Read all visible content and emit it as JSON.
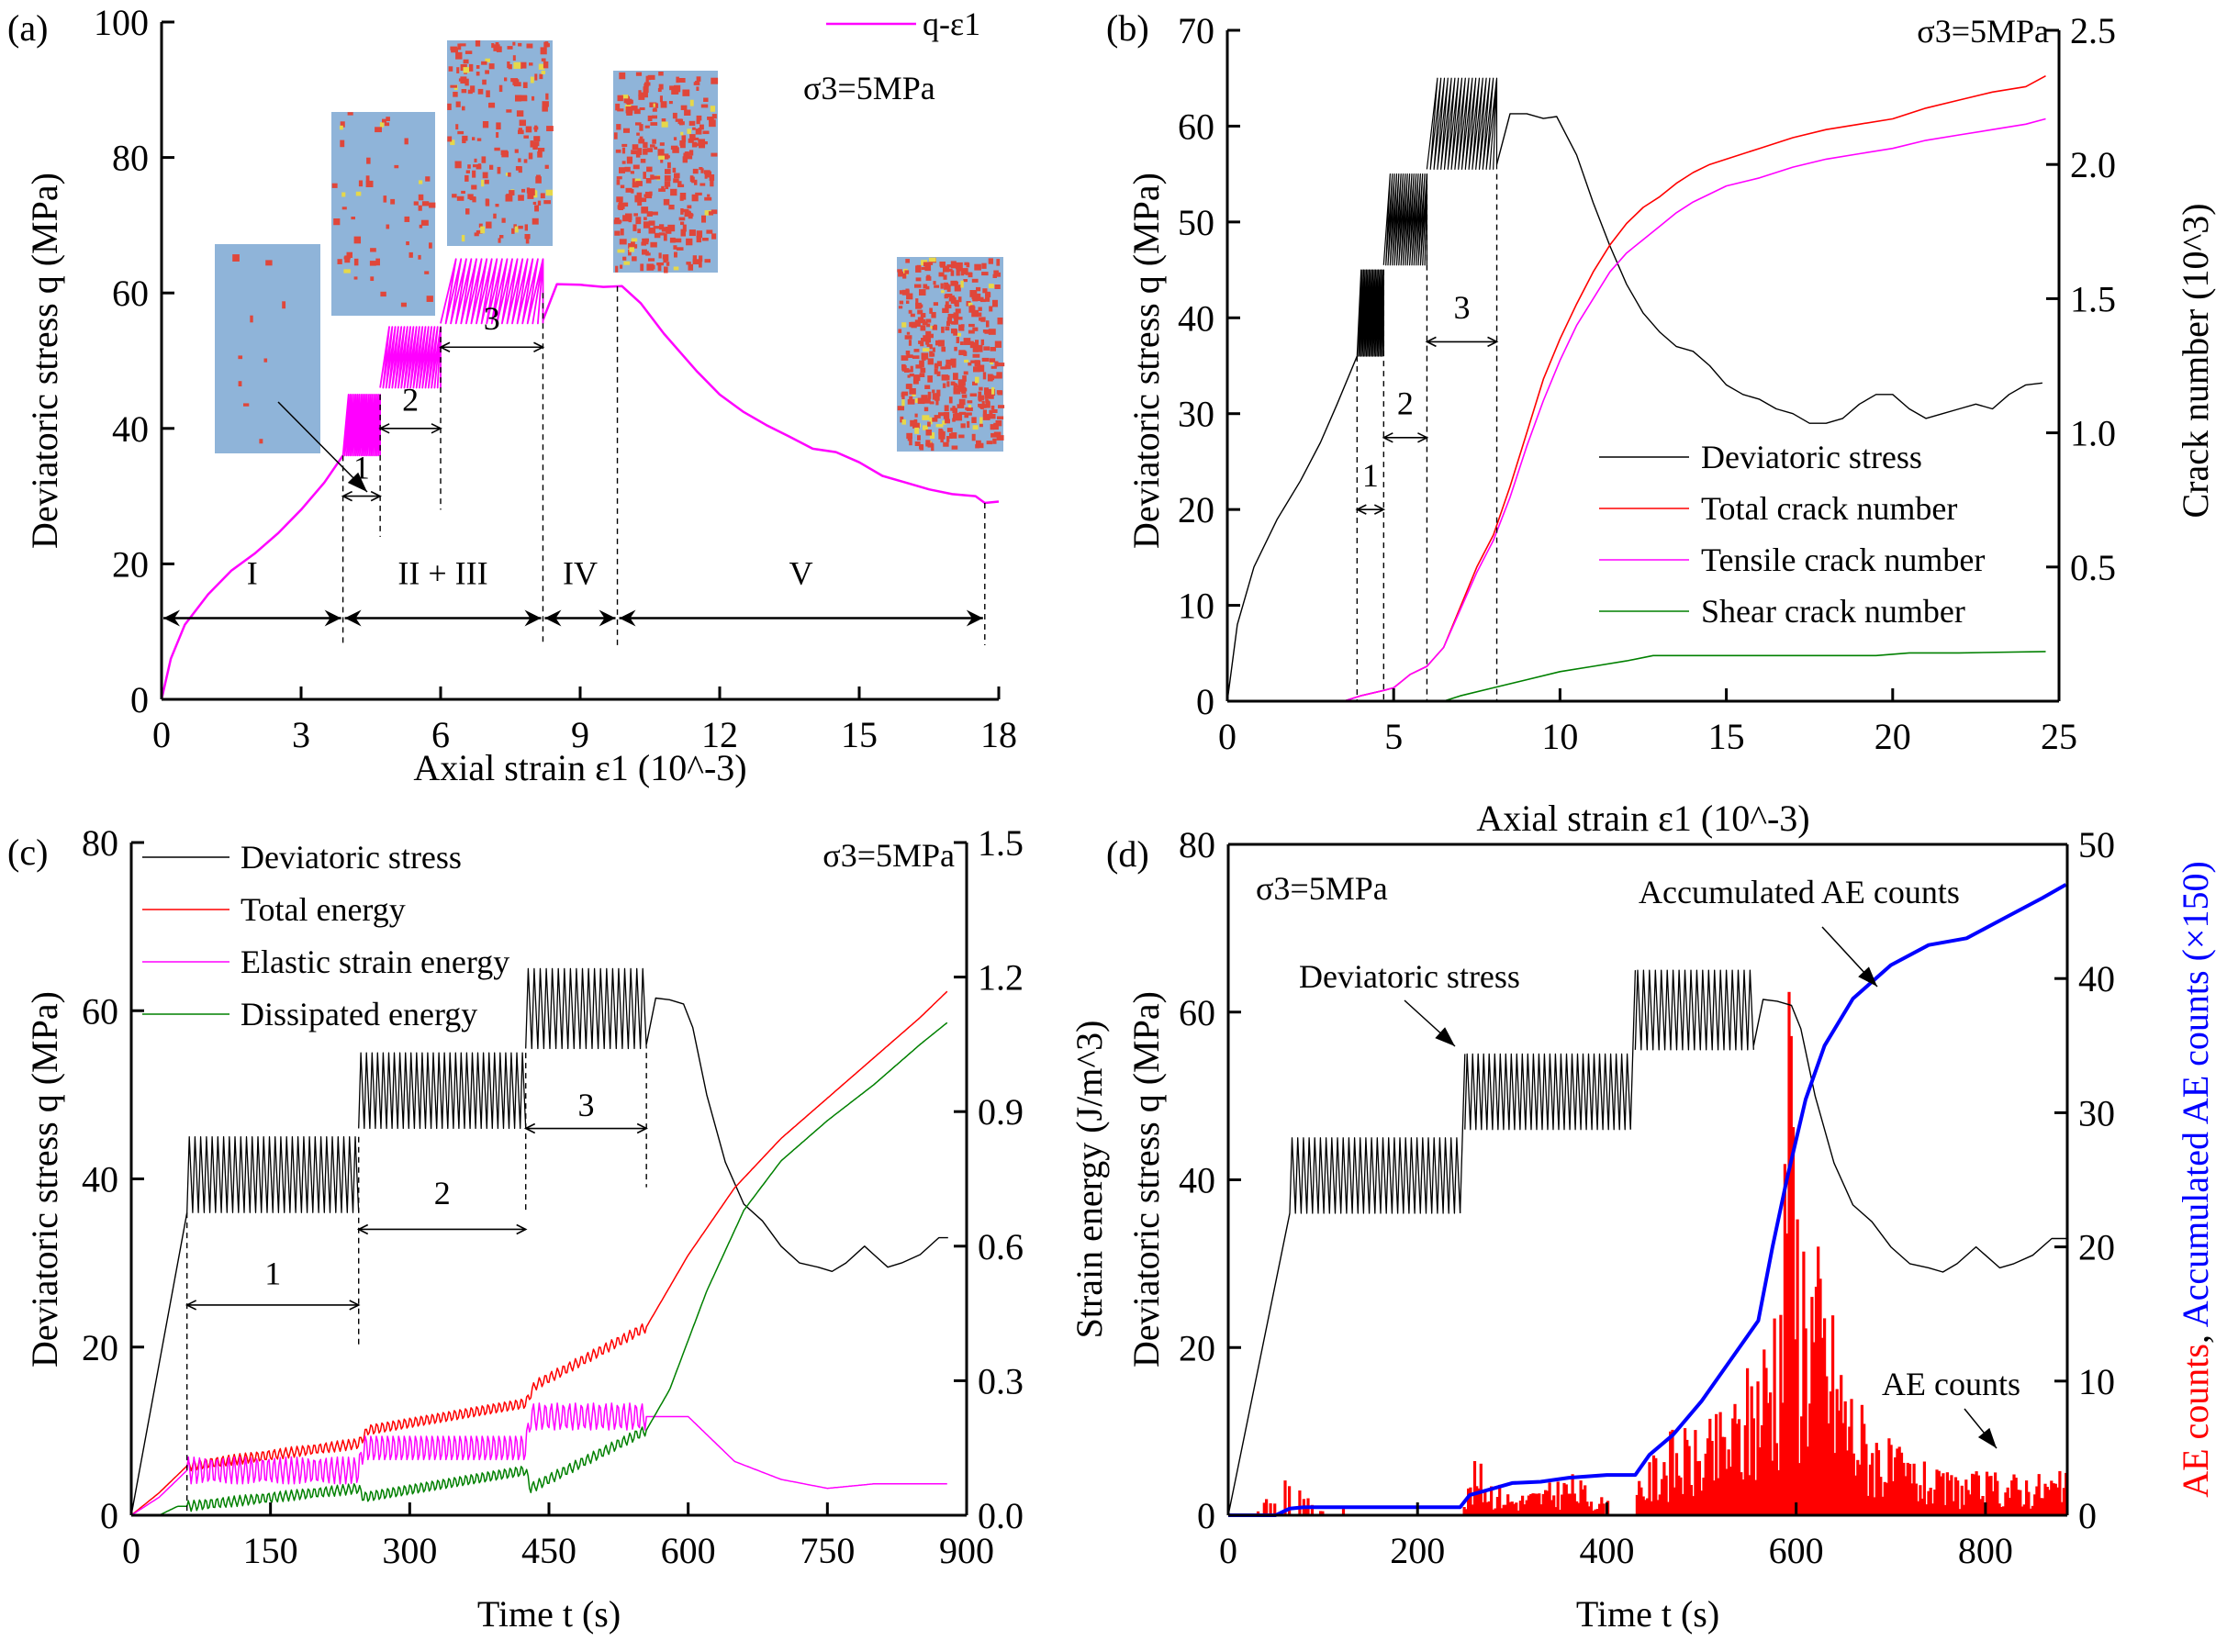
{
  "chart_data": [
    {
      "id": "a",
      "type": "line",
      "panel_label": "(a)",
      "title": "",
      "xlabel": "Axial strain ε1 (10^-3)",
      "ylabel": "Deviatoric stress q (MPa)",
      "xlim": [
        0,
        18
      ],
      "ylim": [
        0,
        100
      ],
      "xticks": [
        0,
        3,
        6,
        9,
        12,
        15,
        18
      ],
      "yticks": [
        0,
        20,
        40,
        60,
        80,
        100
      ],
      "legend": [
        "q-ε1"
      ],
      "legend_position": "top-right",
      "annotation": "σ3=5MPa",
      "series": [
        {
          "name": "q-ε1",
          "color": "#ff00ff",
          "monotonic_x": [
            0,
            0.2,
            0.5,
            1.0,
            1.5,
            2.0,
            2.5,
            3.0,
            3.5,
            3.9
          ],
          "monotonic_y": [
            0,
            6,
            11,
            15.5,
            19,
            21.5,
            24.5,
            28,
            32,
            36
          ],
          "cyclic_stages": [
            {
              "stage": "1",
              "x_start": 3.9,
              "x_end": 4.7,
              "q_min": 36,
              "q_max": 45,
              "cycles": 20
            },
            {
              "stage": "2",
              "x_start": 4.7,
              "x_end": 6.0,
              "q_min": 46,
              "q_max": 55,
              "cycles": 20
            },
            {
              "stage": "3",
              "x_start": 6.0,
              "x_end": 8.2,
              "q_min": 55.5,
              "q_max": 65,
              "cycles": 20
            }
          ],
          "post_x": [
            8.2,
            8.5,
            9.0,
            9.5,
            9.9,
            10.3,
            10.8,
            11.5,
            12.0,
            12.5,
            13.0,
            13.5,
            14.0,
            14.5,
            15.0,
            15.5,
            16.0,
            16.5,
            17.0,
            17.5,
            17.7,
            18.0
          ],
          "post_y": [
            56,
            61.3,
            61.2,
            60.9,
            61.0,
            58.5,
            54,
            48.5,
            45,
            42.5,
            40.5,
            38.8,
            37,
            36.5,
            35,
            33,
            32,
            31,
            30.3,
            30,
            29,
            29.2
          ]
        }
      ],
      "stages": [
        {
          "label": "I",
          "from": 0,
          "to": 3.9
        },
        {
          "label": "II + III",
          "from": 3.9,
          "to": 8.2
        },
        {
          "label": "IV",
          "from": 8.2,
          "to": 9.8
        },
        {
          "label": "V",
          "from": 9.8,
          "to": 17.7
        }
      ],
      "cyclic_labels": [
        "1",
        "2",
        "3"
      ],
      "insets": [
        {
          "name": "specimen-stage-I",
          "crack_density": 0.01
        },
        {
          "name": "specimen-stage-1",
          "crack_density": 0.06
        },
        {
          "name": "specimen-stage-3",
          "crack_density": 0.2
        },
        {
          "name": "specimen-peak",
          "crack_density": 0.33
        },
        {
          "name": "specimen-residual",
          "crack_density": 0.45
        }
      ]
    },
    {
      "id": "b",
      "type": "line",
      "panel_label": "(b)",
      "xlabel": "Axial strain ε1 (10^-3)",
      "ylabel": "Deviatoric stress q (MPa)",
      "ylabel_right": "Crack number (10^3)",
      "xlim": [
        0,
        25
      ],
      "ylim": [
        0,
        70
      ],
      "ylim_right": [
        0,
        2.5
      ],
      "xticks": [
        0,
        5,
        10,
        15,
        20,
        25
      ],
      "yticks": [
        0,
        10,
        20,
        30,
        40,
        50,
        60,
        70
      ],
      "yticks_right": [
        0.5,
        1.0,
        1.5,
        2.0,
        2.5
      ],
      "annotation": "σ3=5MPa",
      "legend_position": "center-right",
      "cyclic_labels": [
        "1",
        "2",
        "3"
      ],
      "series": [
        {
          "name": "Deviatoric stress",
          "color": "#000000",
          "axis": "left",
          "monotonic_x": [
            0,
            0.3,
            0.8,
            1.5,
            2.2,
            2.8,
            3.3,
            3.9
          ],
          "monotonic_y": [
            0,
            8,
            14,
            19,
            23,
            27,
            31,
            36
          ],
          "cyclic_stages": [
            {
              "x_start": 3.9,
              "x_end": 4.7,
              "q_min": 36,
              "q_max": 45
            },
            {
              "x_start": 4.7,
              "x_end": 6.0,
              "q_min": 45.5,
              "q_max": 55
            },
            {
              "x_start": 6.0,
              "x_end": 8.1,
              "q_min": 55.5,
              "q_max": 65
            }
          ],
          "post_x": [
            8.1,
            8.5,
            9.0,
            9.5,
            9.9,
            10.5,
            11.0,
            11.5,
            12.0,
            12.5,
            13.0,
            13.5,
            14.0,
            14.5,
            15.0,
            15.5,
            16.0,
            16.5,
            17.0,
            17.5,
            18.0,
            18.5,
            19.0,
            19.5,
            20.0,
            20.5,
            21.0,
            21.5,
            22.0,
            22.5,
            23.0,
            23.5,
            24.0,
            24.5
          ],
          "post_y": [
            56,
            61.3,
            61.3,
            60.8,
            61.0,
            57,
            52,
            47.5,
            43.5,
            40.5,
            38.5,
            37,
            36.5,
            35,
            33,
            32,
            31.5,
            30.5,
            30,
            29,
            29,
            29.5,
            31,
            32,
            32,
            30.5,
            29.5,
            30,
            30.5,
            31,
            30.5,
            32,
            33,
            33.2
          ]
        },
        {
          "name": "Total crack number",
          "color": "#ff0000",
          "axis": "right",
          "x": [
            3.5,
            4.0,
            4.7,
            5.0,
            5.5,
            6.0,
            6.5,
            7.0,
            7.5,
            8.0,
            8.5,
            9.0,
            9.5,
            10.0,
            10.5,
            11.0,
            11.5,
            12.0,
            12.5,
            13.0,
            13.5,
            14.0,
            14.5,
            15.0,
            16.0,
            17.0,
            18.0,
            19.0,
            20.0,
            21.0,
            22.0,
            23.0,
            24.0,
            24.6
          ],
          "y": [
            0,
            0.02,
            0.04,
            0.05,
            0.1,
            0.13,
            0.2,
            0.35,
            0.5,
            0.62,
            0.8,
            1.0,
            1.2,
            1.35,
            1.48,
            1.6,
            1.7,
            1.78,
            1.84,
            1.88,
            1.93,
            1.97,
            2.0,
            2.02,
            2.06,
            2.1,
            2.13,
            2.15,
            2.17,
            2.21,
            2.24,
            2.27,
            2.29,
            2.33
          ]
        },
        {
          "name": "Tensile crack number",
          "color": "#ff00ff",
          "axis": "right",
          "x": [
            3.5,
            4.0,
            4.7,
            5.0,
            5.5,
            6.0,
            6.5,
            7.0,
            7.5,
            8.0,
            8.5,
            9.0,
            9.5,
            10.0,
            10.5,
            11.0,
            11.5,
            12.0,
            12.5,
            13.0,
            13.5,
            14.0,
            14.5,
            15.0,
            16.0,
            17.0,
            18.0,
            19.0,
            20.0,
            21.0,
            22.0,
            23.0,
            24.0,
            24.6
          ],
          "y": [
            0,
            0.02,
            0.04,
            0.05,
            0.1,
            0.13,
            0.2,
            0.34,
            0.48,
            0.6,
            0.76,
            0.95,
            1.12,
            1.27,
            1.4,
            1.5,
            1.6,
            1.67,
            1.72,
            1.77,
            1.82,
            1.86,
            1.89,
            1.92,
            1.95,
            1.99,
            2.02,
            2.04,
            2.06,
            2.09,
            2.11,
            2.13,
            2.15,
            2.17
          ]
        },
        {
          "name": "Shear crack number",
          "color": "#008000",
          "axis": "right",
          "x": [
            6.5,
            7.0,
            8.0,
            9.0,
            10.0,
            11.0,
            12.0,
            12.8,
            14.0,
            16.0,
            18.0,
            19.5,
            20.5,
            22.0,
            24.6
          ],
          "y": [
            0,
            0.02,
            0.05,
            0.08,
            0.11,
            0.13,
            0.15,
            0.17,
            0.17,
            0.17,
            0.17,
            0.17,
            0.18,
            0.18,
            0.185
          ]
        }
      ]
    },
    {
      "id": "c",
      "type": "line",
      "panel_label": "(c)",
      "xlabel": "Time t (s)",
      "ylabel": "Deviatoric stress q (MPa)",
      "ylabel_right": "Strain energy (J/m^3)",
      "xlim": [
        0,
        900
      ],
      "ylim": [
        0,
        80
      ],
      "ylim_right": [
        0,
        1.5
      ],
      "xticks": [
        0,
        150,
        300,
        450,
        600,
        750,
        900
      ],
      "yticks": [
        0,
        20,
        40,
        60,
        80
      ],
      "yticks_right": [
        0.0,
        0.3,
        0.6,
        0.9,
        1.2,
        1.5
      ],
      "annotation": "σ3=5MPa",
      "legend_position": "top-left",
      "cyclic_labels": [
        "1",
        "2",
        "3"
      ],
      "cyclic_stages": [
        {
          "t_start": 60,
          "t_end": 245,
          "q_min": 36,
          "q_max": 45,
          "cycles": 30
        },
        {
          "t_start": 245,
          "t_end": 425,
          "q_min": 46,
          "q_max": 55,
          "cycles": 30
        },
        {
          "t_start": 425,
          "t_end": 555,
          "q_min": 55.5,
          "q_max": 65,
          "cycles": 20
        }
      ],
      "series": [
        {
          "name": "Deviatoric stress",
          "color": "#000000",
          "axis": "left",
          "post_t": [
            555,
            565,
            580,
            595,
            605,
            620,
            640,
            660,
            680,
            700,
            720,
            740,
            755,
            770,
            790,
            800,
            815,
            830,
            850,
            870,
            880
          ],
          "post_y": [
            56,
            61.5,
            61.3,
            60.8,
            58,
            50,
            42,
            37,
            35,
            32,
            30,
            29.5,
            29,
            30,
            32,
            31,
            29.5,
            30,
            31,
            33,
            33
          ]
        },
        {
          "name": "Total energy",
          "color": "#ff0000",
          "axis": "right",
          "t": [
            0,
            30,
            60,
            245,
            255,
            425,
            435,
            555,
            600,
            650,
            700,
            750,
            800,
            850,
            880
          ],
          "y": [
            0,
            0.05,
            0.11,
            0.16,
            0.19,
            0.25,
            0.29,
            0.42,
            0.58,
            0.73,
            0.84,
            0.93,
            1.02,
            1.11,
            1.17
          ]
        },
        {
          "name": "Elastic strain energy",
          "color": "#ff00ff",
          "axis": "right",
          "t": [
            0,
            30,
            60,
            245,
            250,
            425,
            430,
            555,
            570,
            600,
            620,
            650,
            700,
            750,
            800,
            850,
            880
          ],
          "y": [
            0,
            0.04,
            0.1,
            0.1,
            0.15,
            0.15,
            0.22,
            0.22,
            0.22,
            0.22,
            0.18,
            0.12,
            0.08,
            0.06,
            0.07,
            0.07,
            0.07
          ],
          "cyclic_amplitude": 0.03
        },
        {
          "name": "Dissipated energy",
          "color": "#008000",
          "axis": "right",
          "t": [
            30,
            50,
            60,
            245,
            250,
            425,
            430,
            555,
            580,
            620,
            660,
            700,
            750,
            800,
            850,
            880
          ],
          "y": [
            0,
            0.02,
            0.02,
            0.06,
            0.04,
            0.1,
            0.06,
            0.19,
            0.28,
            0.5,
            0.68,
            0.79,
            0.88,
            0.96,
            1.05,
            1.1
          ]
        }
      ]
    },
    {
      "id": "d",
      "type": "bar+line",
      "panel_label": "(d)",
      "xlabel": "Time t (s)",
      "ylabel": "Deviatoric stress q (MPa)",
      "ylabel_right_parts": [
        "AE counts",
        ", ",
        "Accumulated AE counts (×150)"
      ],
      "xlim": [
        0,
        900
      ],
      "ylim": [
        0,
        80
      ],
      "ylim_right": [
        0,
        50
      ],
      "xticks": [
        0,
        200,
        400,
        600,
        800
      ],
      "yticks": [
        0,
        20,
        40,
        60,
        80
      ],
      "yticks_right": [
        0,
        10,
        20,
        30,
        40,
        50
      ],
      "annotation": "σ3=5MPa",
      "annotations": [
        "Deviatoric stress",
        "Accumulated AE counts",
        "AE counts"
      ],
      "cyclic_stages": [
        {
          "t_start": 65,
          "t_end": 245,
          "q_min": 36,
          "q_max": 45,
          "cycles": 30
        },
        {
          "t_start": 250,
          "t_end": 425,
          "q_min": 46,
          "q_max": 55,
          "cycles": 30
        },
        {
          "t_start": 430,
          "t_end": 555,
          "q_min": 55.5,
          "q_max": 65,
          "cycles": 20
        }
      ],
      "series": [
        {
          "name": "Deviatoric stress",
          "color": "#000000",
          "axis": "left",
          "post_t": [
            555,
            565,
            580,
            595,
            605,
            620,
            640,
            660,
            680,
            700,
            720,
            740,
            755,
            770,
            790,
            800,
            815,
            830,
            850,
            870,
            885
          ],
          "post_y": [
            56,
            61.5,
            61.3,
            60.8,
            58,
            50,
            42,
            37,
            35,
            32,
            30,
            29.5,
            29,
            30,
            32,
            31,
            29.5,
            30,
            31,
            33,
            33
          ]
        },
        {
          "name": "Accumulated AE counts",
          "color": "#0000ff",
          "axis": "right",
          "t": [
            0,
            50,
            65,
            80,
            245,
            255,
            280,
            300,
            330,
            360,
            400,
            430,
            445,
            470,
            500,
            530,
            560,
            575,
            590,
            610,
            630,
            660,
            700,
            740,
            780,
            820,
            860,
            885
          ],
          "y": [
            0,
            0,
            0.5,
            0.6,
            0.6,
            1.5,
            2,
            2.4,
            2.5,
            2.8,
            3.0,
            3.0,
            4.5,
            6,
            8.5,
            11.5,
            14.5,
            20,
            25,
            31,
            35,
            38.5,
            41,
            42.5,
            43,
            44.5,
            46,
            47
          ]
        },
        {
          "name": "AE counts",
          "color": "#ff0000",
          "axis": "right",
          "type": "bar",
          "envelope_t": [
            0,
            30,
            60,
            80,
            100,
            245,
            260,
            280,
            300,
            330,
            360,
            400,
            430,
            460,
            500,
            540,
            570,
            585,
            590,
            600,
            620,
            640,
            660,
            700,
            750,
            800,
            850,
            885
          ],
          "envelope_y": [
            0,
            0.5,
            3,
            1.5,
            0.5,
            0.5,
            4,
            2.5,
            1.5,
            2,
            3,
            1,
            2,
            6,
            6,
            9,
            15,
            23,
            39,
            25,
            20,
            14,
            9,
            5,
            3,
            3,
            3,
            3
          ],
          "peak": {
            "t": 590,
            "value": 39
          }
        }
      ]
    }
  ]
}
